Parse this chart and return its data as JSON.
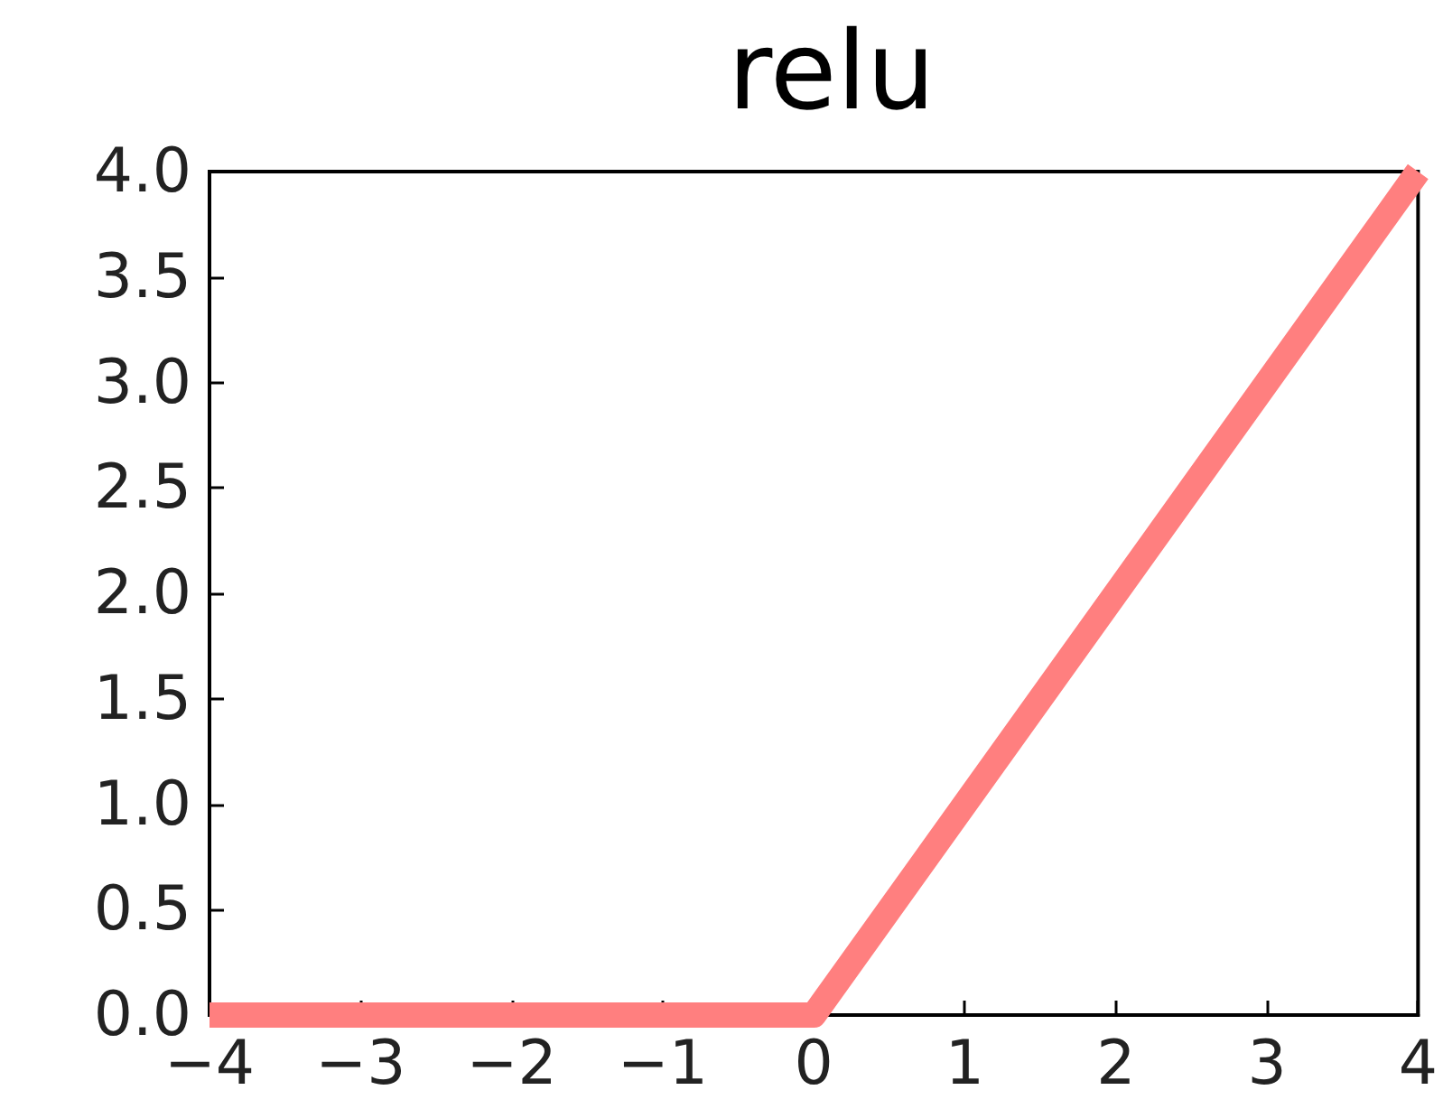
{
  "chart_data": {
    "type": "line",
    "title": "relu",
    "x": [
      -4,
      0,
      4
    ],
    "series": [
      {
        "color": "#ff7f7f",
        "values": [
          0,
          0,
          4
        ]
      }
    ],
    "xlim": [
      -4,
      4
    ],
    "xticks": [
      {
        "value": -4,
        "label": "−4"
      },
      {
        "value": -3,
        "label": "−3"
      },
      {
        "value": -2,
        "label": "−2"
      },
      {
        "value": -1,
        "label": "−1"
      },
      0,
      1,
      2,
      3,
      4
    ],
    "ylim": [
      0,
      4
    ],
    "yticks": [
      {
        "value": 0,
        "label": "0.0"
      },
      {
        "value": 0.5,
        "label": "0.5"
      },
      {
        "value": 1,
        "label": "1.0"
      },
      {
        "value": 1.5,
        "label": "1.5"
      },
      {
        "value": 2,
        "label": "2.0"
      },
      {
        "value": 2.5,
        "label": "2.5"
      },
      {
        "value": 3,
        "label": "3.0"
      },
      {
        "value": 3.5,
        "label": "3.5"
      },
      {
        "value": 4,
        "label": "4.0"
      }
    ],
    "grid": false,
    "marker": "none",
    "line_style": "solid"
  }
}
